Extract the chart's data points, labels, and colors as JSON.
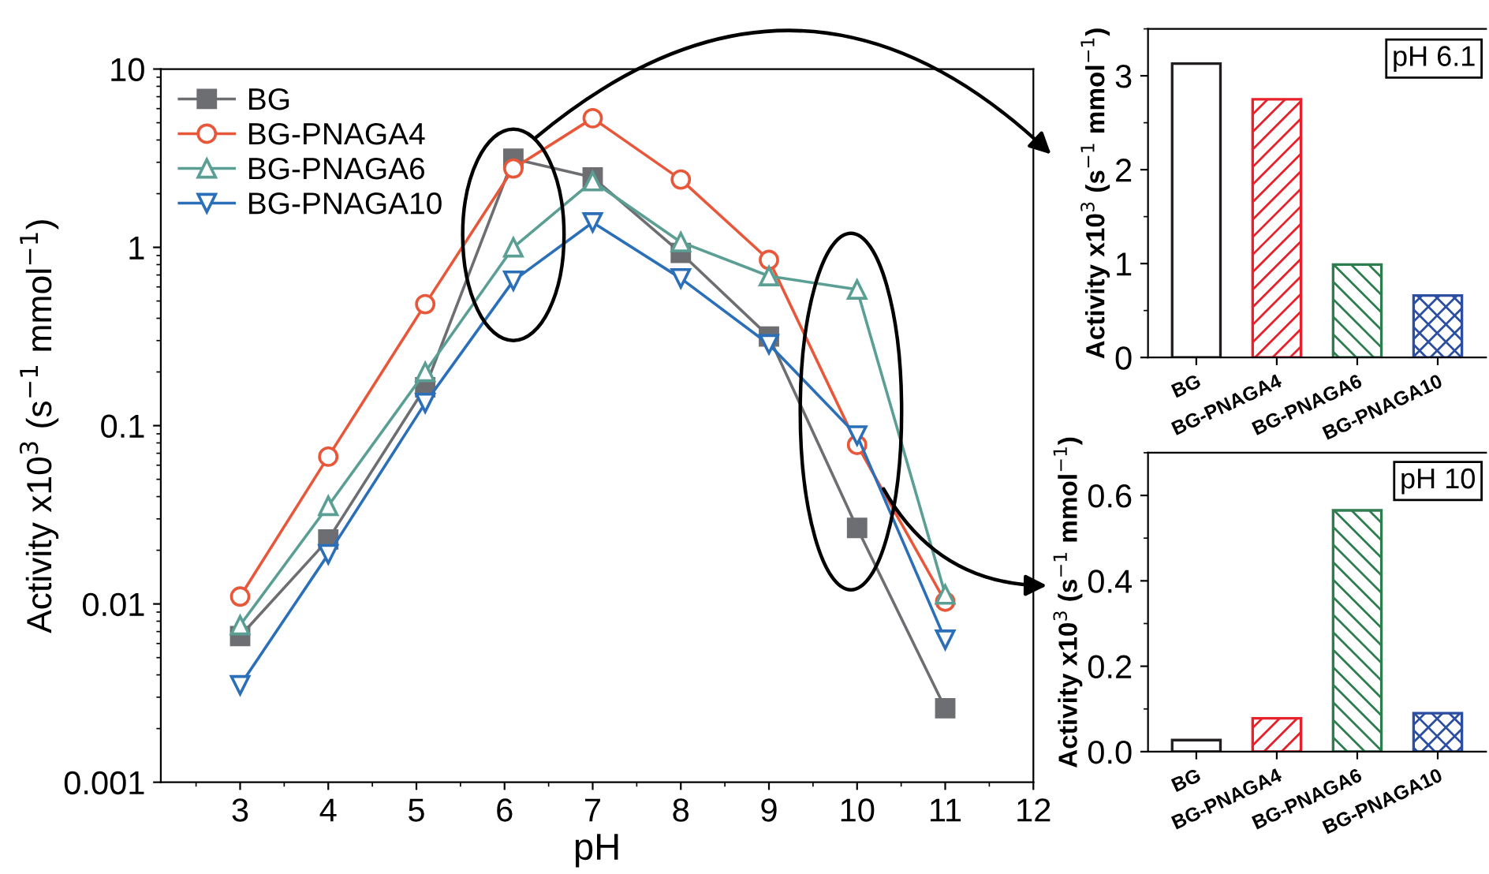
{
  "chart_data": [
    {
      "type": "line",
      "xlabel": "pH",
      "ylabel": "Activity x10$^{3}$ (s$^{−1}$ mmol$^{−1}$)",
      "log": "y",
      "xlim": [
        2.1,
        12
      ],
      "ylim": [
        0.001,
        10
      ],
      "xticks": [
        3,
        4,
        5,
        6,
        7,
        8,
        9,
        10,
        11,
        12
      ],
      "yticks": [
        0.001,
        0.01,
        0.1,
        1,
        10
      ],
      "legend": "top left",
      "grid": false,
      "line_style": "solid",
      "series": [
        {
          "name": "BG",
          "color": "#6d6e71",
          "marker": "square",
          "x": [
            3,
            4,
            5.1,
            6.1,
            7,
            8,
            9,
            10,
            11
          ],
          "values": [
            0.0066,
            0.023,
            0.164,
            3.14,
            2.47,
            0.93,
            0.316,
            0.0267,
            0.0026
          ]
        },
        {
          "name": "BG-PNAGA4",
          "color": "#e8573a",
          "marker": "circle",
          "x": [
            3,
            4,
            5.1,
            6.1,
            7,
            8,
            9,
            10,
            11
          ],
          "values": [
            0.011,
            0.067,
            0.48,
            2.77,
            5.3,
            2.4,
            0.85,
            0.078,
            0.0103
          ]
        },
        {
          "name": "BG-PNAGA6",
          "color": "#5a9e94",
          "marker": "triangle",
          "x": [
            3,
            4,
            5.1,
            6.1,
            7,
            8,
            9,
            10,
            11
          ],
          "values": [
            0.0076,
            0.0355,
            0.2,
            1.0,
            2.35,
            1.07,
            0.69,
            0.58,
            0.0113
          ]
        },
        {
          "name": "BG-PNAGA10",
          "color": "#2a6fb8",
          "marker": "triangle_down",
          "x": [
            3,
            4,
            5.1,
            6.1,
            7,
            8,
            9,
            10,
            11
          ],
          "values": [
            0.0035,
            0.019,
            0.134,
            0.65,
            1.38,
            0.67,
            0.286,
            0.088,
            0.0063
          ]
        }
      ]
    },
    {
      "type": "bar",
      "ylabel": "Activity x10$^{3}$ (s$^{−1}$ mmol$^{−1}$)",
      "annotations": [
        "pH 6.1"
      ],
      "categories": [
        "BG",
        "BG-PNAGA4",
        "BG-PNAGA6",
        "BG-PNAGA10"
      ],
      "values": [
        3.13,
        2.75,
        0.99,
        0.66
      ],
      "colors": [
        "#231f20",
        "#e8202a",
        "#2e7d4f",
        "#2b4ea2"
      ],
      "ylim": [
        0,
        3.5
      ],
      "yticks": [
        0,
        1,
        2,
        3
      ]
    },
    {
      "type": "bar",
      "ylabel": "Activity x10$^{3}$ (s$^{−1}$ mmol$^{−1}$)",
      "annotations": [
        "pH 10"
      ],
      "categories": [
        "BG",
        "BG-PNAGA4",
        "BG-PNAGA6",
        "BG-PNAGA10"
      ],
      "values": [
        0.027,
        0.078,
        0.565,
        0.09
      ],
      "colors": [
        "#231f20",
        "#e8202a",
        "#2e7d4f",
        "#2b4ea2"
      ],
      "ylim": [
        0,
        0.7
      ],
      "yticks": [
        {
          "value": 0,
          "label": "0.0"
        },
        {
          "value": 0.2,
          "label": "0.2"
        },
        {
          "value": 0.4,
          "label": "0.4"
        },
        {
          "value": 0.6,
          "label": "0.6"
        }
      ]
    }
  ]
}
